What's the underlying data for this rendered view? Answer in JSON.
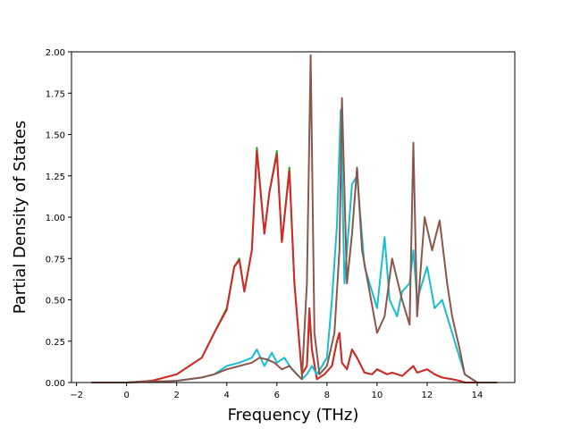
{
  "chart_data": {
    "type": "line",
    "title": "",
    "xlabel": "Frequency (THz)",
    "ylabel": "Partial Density of States",
    "xlim": [
      -2.2,
      15.5
    ],
    "ylim": [
      0.0,
      2.0
    ],
    "xticks": [
      -2,
      0,
      2,
      4,
      6,
      8,
      10,
      12,
      14
    ],
    "yticks": [
      0.0,
      0.25,
      0.5,
      0.75,
      1.0,
      1.25,
      1.5,
      1.75,
      2.0
    ],
    "xtick_labels": [
      "−2",
      "0",
      "2",
      "4",
      "6",
      "8",
      "10",
      "12",
      "14"
    ],
    "ytick_labels": [
      "0.00",
      "0.25",
      "0.50",
      "0.75",
      "1.00",
      "1.25",
      "1.50",
      "1.75",
      "2.00"
    ],
    "grid": false,
    "legend": "none",
    "series": [
      {
        "color": "#2ca02c",
        "x": [
          -1.4,
          0,
          1,
          2,
          3,
          3.5,
          4,
          4.3,
          4.5,
          4.7,
          5,
          5.2,
          5.5,
          5.7,
          6,
          6.2,
          6.5,
          6.7,
          7,
          7.2,
          7.3,
          7.4,
          7.6,
          7.9,
          8.2,
          8.4,
          8.5,
          8.6,
          8.8,
          9,
          9.2,
          9.5,
          9.8,
          10,
          10.4,
          10.6,
          11,
          11.3,
          11.45,
          11.6,
          12,
          12.3,
          12.6,
          13,
          13.3,
          13.5,
          14,
          14.8
        ],
        "y": [
          0,
          0,
          0.01,
          0.05,
          0.15,
          0.3,
          0.45,
          0.7,
          0.75,
          0.55,
          0.8,
          1.42,
          0.9,
          1.15,
          1.4,
          0.85,
          1.3,
          0.6,
          0.05,
          0.1,
          0.4,
          0.2,
          0.02,
          0.05,
          0.1,
          0.25,
          0.3,
          0.12,
          0.08,
          0.2,
          0.15,
          0.06,
          0.05,
          0.08,
          0.05,
          0.06,
          0.04,
          0.08,
          0.1,
          0.06,
          0.08,
          0.05,
          0.03,
          0.02,
          0.01,
          0,
          0,
          0
        ]
      },
      {
        "color": "#d62728",
        "x": [
          -1.4,
          0,
          1,
          2,
          3,
          3.5,
          4,
          4.3,
          4.5,
          4.7,
          5,
          5.2,
          5.5,
          5.7,
          6,
          6.2,
          6.5,
          6.7,
          7,
          7.2,
          7.3,
          7.4,
          7.6,
          7.9,
          8.2,
          8.4,
          8.5,
          8.6,
          8.8,
          9,
          9.2,
          9.5,
          9.8,
          10,
          10.4,
          10.6,
          11,
          11.3,
          11.45,
          11.6,
          12,
          12.3,
          12.6,
          13,
          13.3,
          13.5,
          14,
          14.8
        ],
        "y": [
          0,
          0,
          0.01,
          0.05,
          0.15,
          0.3,
          0.44,
          0.7,
          0.74,
          0.55,
          0.8,
          1.4,
          0.9,
          1.15,
          1.38,
          0.85,
          1.28,
          0.6,
          0.05,
          0.1,
          0.45,
          0.2,
          0.02,
          0.05,
          0.1,
          0.25,
          0.3,
          0.12,
          0.08,
          0.2,
          0.15,
          0.06,
          0.05,
          0.08,
          0.05,
          0.06,
          0.04,
          0.08,
          0.1,
          0.06,
          0.08,
          0.05,
          0.03,
          0.02,
          0.01,
          0,
          0,
          0
        ]
      },
      {
        "color": "#17becf",
        "x": [
          -1.4,
          0,
          2,
          3,
          3.5,
          4,
          4.5,
          5,
          5.2,
          5.5,
          5.8,
          6,
          6.3,
          6.6,
          7,
          7.2,
          7.4,
          7.6,
          8,
          8.2,
          8.4,
          8.55,
          8.7,
          9,
          9.2,
          9.5,
          9.8,
          10,
          10.3,
          10.5,
          10.8,
          11,
          11.3,
          11.45,
          11.6,
          12,
          12.3,
          12.6,
          13,
          13.5,
          14,
          14.8
        ],
        "y": [
          0,
          0,
          0.01,
          0.03,
          0.05,
          0.1,
          0.12,
          0.15,
          0.2,
          0.1,
          0.18,
          0.12,
          0.15,
          0.08,
          0.02,
          0.05,
          0.1,
          0.05,
          0.15,
          0.5,
          0.95,
          1.65,
          0.6,
          1.2,
          1.25,
          0.7,
          0.55,
          0.45,
          0.88,
          0.5,
          0.4,
          0.55,
          0.6,
          0.8,
          0.5,
          0.7,
          0.45,
          0.5,
          0.3,
          0.05,
          0,
          0
        ]
      },
      {
        "color": "#8c564b",
        "x": [
          -1.4,
          0,
          2,
          3,
          3.5,
          4,
          4.5,
          5,
          5.3,
          5.6,
          5.9,
          6.2,
          6.5,
          6.8,
          7,
          7.2,
          7.35,
          7.5,
          7.7,
          8,
          8.3,
          8.5,
          8.6,
          8.8,
          9,
          9.2,
          9.4,
          9.7,
          10,
          10.3,
          10.6,
          11,
          11.3,
          11.45,
          11.6,
          11.9,
          12.2,
          12.5,
          12.8,
          13,
          13.3,
          13.5,
          14,
          14.8
        ],
        "y": [
          0,
          0,
          0.01,
          0.03,
          0.05,
          0.08,
          0.1,
          0.12,
          0.15,
          0.14,
          0.12,
          0.08,
          0.1,
          0.05,
          0.02,
          0.6,
          1.98,
          0.3,
          0.05,
          0.1,
          0.3,
          0.8,
          1.72,
          0.6,
          0.9,
          1.3,
          0.8,
          0.55,
          0.3,
          0.4,
          0.75,
          0.5,
          0.35,
          1.45,
          0.4,
          1.0,
          0.8,
          0.98,
          0.6,
          0.4,
          0.2,
          0.05,
          0,
          0
        ]
      }
    ]
  }
}
